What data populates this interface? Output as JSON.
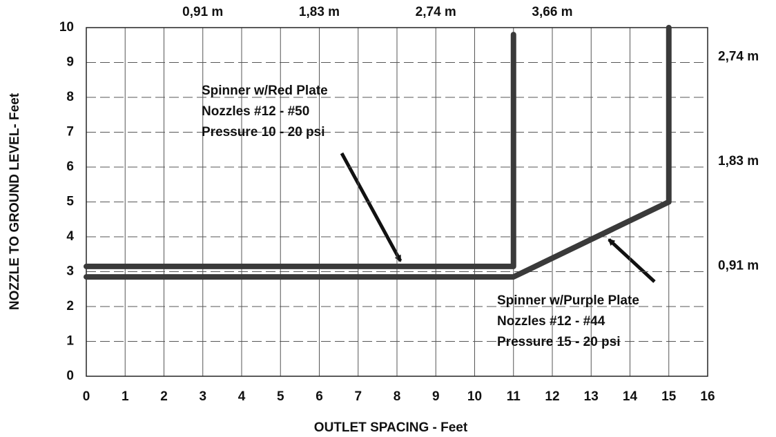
{
  "chart_data": {
    "type": "line",
    "xlabel": "OUTLET SPACING - Feet",
    "ylabel": "NOZZLE TO GROUND LEVEL- Feet",
    "xlim": [
      0,
      16
    ],
    "xticks": [
      0,
      1,
      2,
      3,
      4,
      5,
      6,
      7,
      8,
      9,
      10,
      11,
      12,
      13,
      14,
      15,
      16
    ],
    "ylim": [
      0,
      10
    ],
    "yticks": [
      0,
      1,
      2,
      3,
      4,
      5,
      6,
      7,
      8,
      9,
      10
    ],
    "x2ticks": [
      {
        "value": 3,
        "label": "0,91 m"
      },
      {
        "value": 6,
        "label": "1,83 m"
      },
      {
        "value": 9,
        "label": "2,74 m"
      },
      {
        "value": 12,
        "label": "3,66 m"
      }
    ],
    "y2ticks": [
      {
        "value": 3,
        "label": "0,91 m"
      },
      {
        "value": 6,
        "label": "1,83 m"
      },
      {
        "value": 9,
        "label": "2,74 m"
      }
    ],
    "grid": true,
    "series": [
      {
        "color": "#3a3a3a",
        "x": [
          0,
          11,
          11
        ],
        "values": [
          3.15,
          3.15,
          9.8
        ]
      },
      {
        "color": "#3a3a3a",
        "x": [
          0,
          11,
          15,
          15
        ],
        "values": [
          2.85,
          2.85,
          5,
          10
        ]
      }
    ],
    "annotations": [
      {
        "lines": [
          "Spinner w/Red Plate",
          "Nozzles #12 - #50",
          "Pressure 10 - 20 psi"
        ]
      },
      {
        "lines": [
          "Spinner w/Purple Plate",
          "Nozzles #12 - #44",
          "Pressure 15 - 20 psi"
        ]
      }
    ]
  }
}
